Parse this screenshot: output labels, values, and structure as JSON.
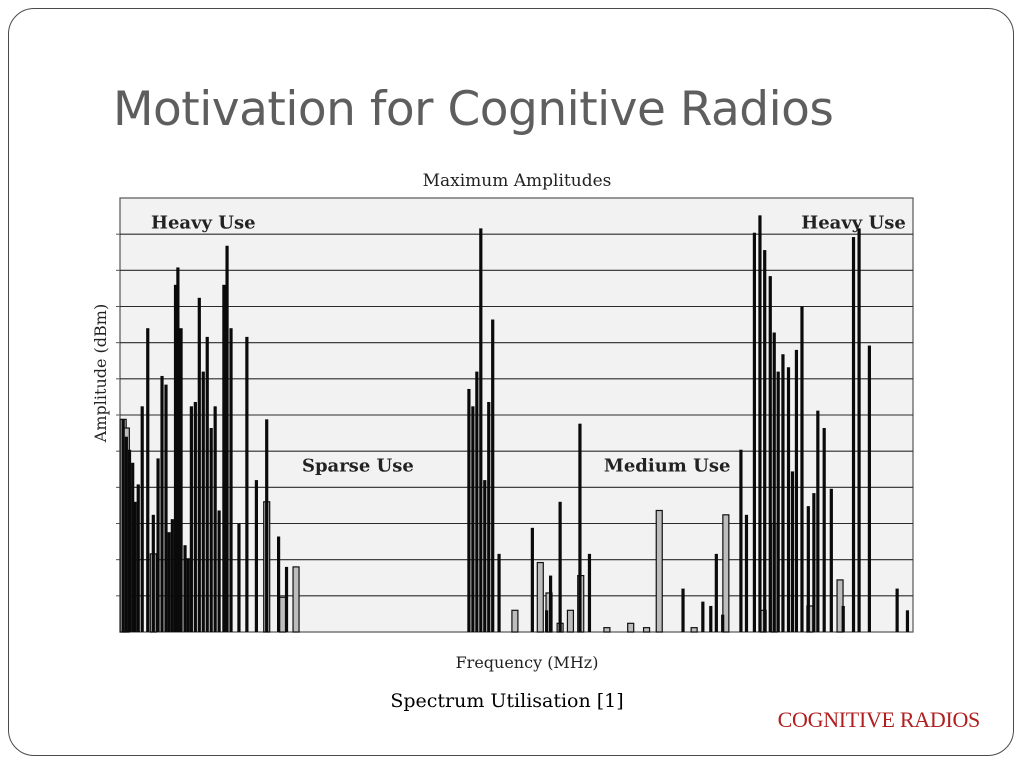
{
  "slide": {
    "title": "Motivation for Cognitive Radios",
    "caption": "Spectrum Utilisation [1]",
    "footer": "COGNITIVE RADIOS"
  },
  "colors": {
    "accent": "#b01e1e",
    "title": "#5e5e5e",
    "plot_bg": "#f2f2f2",
    "bar": "#0a0a0a"
  },
  "chart_data": {
    "type": "bar",
    "title": "Maximum Amplitudes",
    "xlabel": "Frequency (MHz)",
    "ylabel": "Amplitude (dBm)",
    "grid": true,
    "x_range": [
      0,
      1000
    ],
    "y_range": [
      0,
      100
    ],
    "annotations": [
      {
        "text": "Heavy Use",
        "x": 105,
        "y": 93
      },
      {
        "text": "Sparse Use",
        "x": 300,
        "y": 37
      },
      {
        "text": "Medium Use",
        "x": 690,
        "y": 37
      },
      {
        "text": "Heavy Use",
        "x": 925,
        "y": 93
      }
    ],
    "series": [
      {
        "x": [
          4,
          8,
          12,
          16,
          19,
          23,
          28,
          35,
          42,
          48,
          53,
          58,
          62,
          66,
          70,
          73,
          77,
          82,
          86,
          90,
          95,
          100,
          105,
          110,
          115,
          120,
          125,
          131,
          135,
          140,
          150,
          160,
          172,
          185,
          200,
          210,
          440,
          445,
          450,
          455,
          460,
          465,
          470,
          478,
          520,
          538,
          543,
          555,
          580,
          592,
          710,
          735,
          745,
          752,
          760,
          783,
          790,
          800,
          807,
          813,
          820,
          825,
          830,
          836,
          843,
          848,
          853,
          860,
          868,
          875,
          880,
          888,
          897,
          912,
          925,
          932,
          945,
          980,
          993
        ],
        "values": [
          49,
          45,
          42,
          39,
          30,
          34,
          52,
          70,
          27,
          40,
          59,
          57,
          23,
          26,
          80,
          84,
          70,
          20,
          17,
          52,
          53,
          77,
          60,
          68,
          47,
          52,
          28,
          80,
          89,
          70,
          25,
          68,
          35,
          49,
          22,
          15,
          56,
          52,
          60,
          93,
          35,
          53,
          72,
          18,
          24,
          5,
          13,
          30,
          48,
          18,
          10,
          7,
          6,
          18,
          4,
          42,
          27,
          92,
          96,
          88,
          82,
          69,
          60,
          64,
          61,
          37,
          65,
          75,
          29,
          32,
          51,
          47,
          33,
          6,
          91,
          93,
          66,
          10,
          5
        ]
      },
      {
        "x": [
          4,
          8,
          42,
          185,
          205,
          222,
          498,
          530,
          541,
          555,
          568,
          581,
          614,
          644,
          664,
          680,
          724,
          764,
          811,
          825,
          870,
          908
        ],
        "values": [
          49,
          47,
          18,
          30,
          8,
          15,
          5,
          16,
          9,
          2,
          5,
          13,
          1,
          2,
          1,
          28,
          1,
          27,
          5,
          25,
          6,
          12
        ]
      }
    ]
  }
}
